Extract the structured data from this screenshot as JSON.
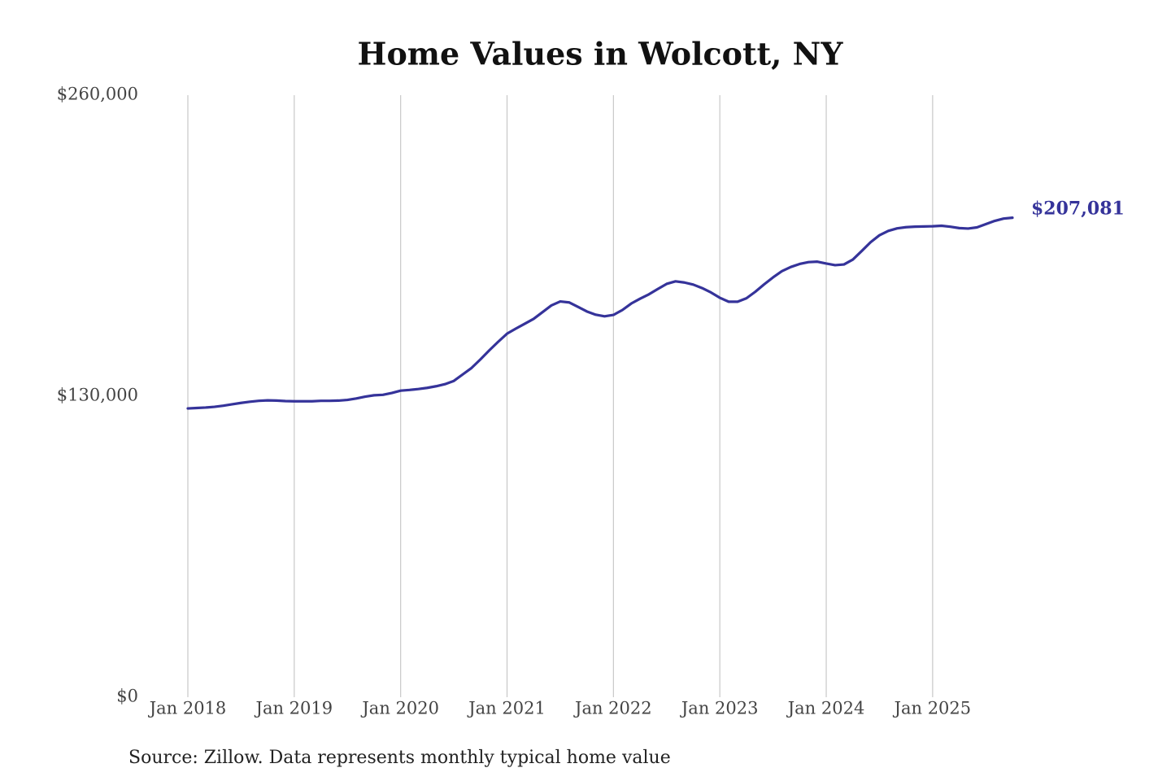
{
  "chart_data": {
    "type": "line",
    "title": "Home Values in Wolcott, NY",
    "source": "Source: Zillow. Data represents monthly typical home value",
    "categories": [
      "Jan 2018",
      null,
      null,
      null,
      null,
      null,
      null,
      null,
      null,
      null,
      null,
      null,
      "Jan 2019",
      null,
      null,
      null,
      null,
      null,
      null,
      null,
      null,
      null,
      null,
      null,
      "Jan 2020",
      null,
      null,
      null,
      null,
      null,
      null,
      null,
      null,
      null,
      null,
      null,
      "Jan 2021",
      null,
      null,
      null,
      null,
      null,
      null,
      null,
      null,
      null,
      null,
      null,
      "Jan 2022",
      null,
      null,
      null,
      null,
      null,
      null,
      null,
      null,
      null,
      null,
      null,
      "Jan 2023",
      null,
      null,
      null,
      null,
      null,
      null,
      null,
      null,
      null,
      null,
      null,
      "Jan 2024",
      null,
      null,
      null,
      null,
      null,
      null,
      null,
      null,
      null,
      null,
      null,
      "Jan 2025",
      null,
      null,
      null,
      null,
      null,
      null,
      null,
      null,
      null
    ],
    "series": [
      {
        "name": "Typical home value",
        "color": "#35339a",
        "values": [
          124700,
          124900,
          125100,
          125400,
          125900,
          126500,
          127100,
          127600,
          128000,
          128200,
          128100,
          127900,
          127800,
          127800,
          127800,
          128000,
          128000,
          128100,
          128400,
          129000,
          129800,
          130400,
          130600,
          131400,
          132400,
          132700,
          133100,
          133600,
          134300,
          135200,
          136600,
          139400,
          142200,
          145900,
          149800,
          153500,
          157000,
          159200,
          161300,
          163400,
          166300,
          169200,
          170900,
          170500,
          168600,
          166600,
          165200,
          164500,
          165100,
          167200,
          170000,
          172100,
          174000,
          176300,
          178500,
          179600,
          179100,
          178200,
          176700,
          174800,
          172500,
          170800,
          170800,
          172300,
          175100,
          178300,
          181300,
          184000,
          185800,
          187100,
          187900,
          188100,
          187300,
          186600,
          186900,
          189000,
          192700,
          196500,
          199500,
          201400,
          202500,
          203000,
          203200,
          203300,
          203400,
          203600,
          203200,
          202600,
          202400,
          202900,
          204300,
          205700,
          206700,
          207081
        ],
        "value_labels": [
          null,
          null,
          null,
          null,
          null,
          null,
          null,
          null,
          null,
          null,
          null,
          null,
          null,
          null,
          null,
          null,
          null,
          null,
          null,
          null,
          null,
          null,
          null,
          null,
          null,
          null,
          null,
          null,
          null,
          null,
          null,
          null,
          null,
          null,
          null,
          null,
          null,
          null,
          null,
          null,
          null,
          null,
          null,
          null,
          null,
          null,
          null,
          null,
          null,
          null,
          null,
          null,
          null,
          null,
          null,
          null,
          null,
          null,
          null,
          null,
          null,
          null,
          null,
          null,
          null,
          null,
          null,
          null,
          null,
          null,
          null,
          null,
          null,
          null,
          null,
          null,
          null,
          null,
          null,
          null,
          null,
          null,
          null,
          null,
          null,
          null,
          null,
          null,
          null,
          null,
          null,
          null,
          null,
          "$207,081"
        ]
      }
    ],
    "ylim": [
      0,
      260000
    ],
    "yticks": [
      {
        "value": 0,
        "label": "$0"
      },
      {
        "value": 130000,
        "label": "$130,000"
      },
      {
        "value": 260000,
        "label": "$260,000"
      }
    ],
    "grid": "x"
  }
}
